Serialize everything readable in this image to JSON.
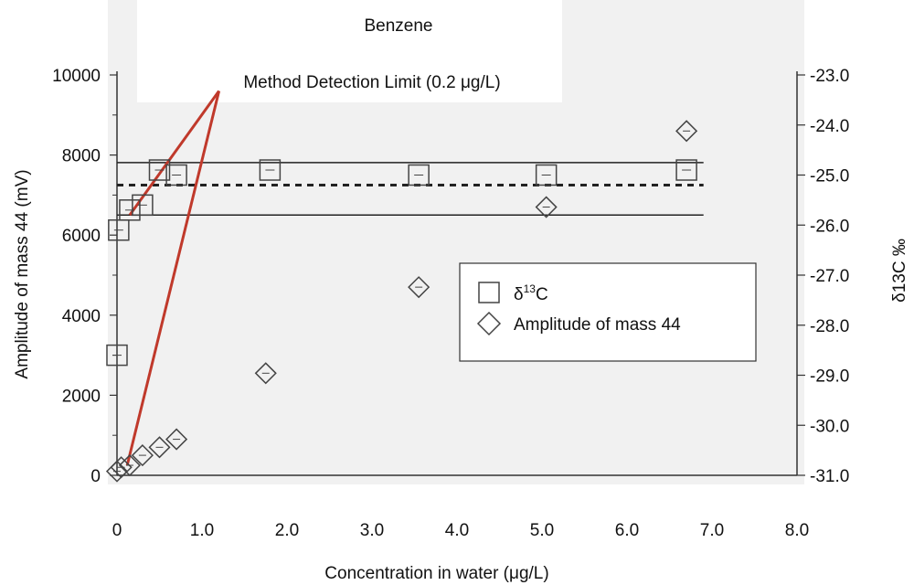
{
  "chart_data": {
    "type": "scatter",
    "title": "Benzene",
    "annotation": "Method Detection Limit (0.2 μg/L)",
    "xlabel": "Concentration in water (μg/L)",
    "ylabel_left": "Amplitude of mass 44 (mV)",
    "ylabel_right": "δ13C ‰",
    "xlim": [
      0,
      8
    ],
    "ylim_left": [
      0,
      10000
    ],
    "ylim_right": [
      -31.0,
      -23.0
    ],
    "x_ticks": [
      "0",
      "1.0",
      "2.0",
      "3.0",
      "4.0",
      "5.0",
      "6.0",
      "7.0",
      "8.0"
    ],
    "y_ticks_left": [
      "0",
      "2000",
      "4000",
      "6000",
      "8000",
      "10000"
    ],
    "y_ticks_right": [
      "-23.0",
      "-24.0",
      "-25.0",
      "-26.0",
      "-27.0",
      "-28.0",
      "-29.0",
      "-30.0",
      "-31.0"
    ],
    "legend": {
      "position": "center-right",
      "items": [
        {
          "symbol": "square",
          "label_main": "δ",
          "label_sup": "13",
          "label_tail": "C"
        },
        {
          "symbol": "diamond",
          "label": "Amplitude of mass 44"
        }
      ]
    },
    "series": [
      {
        "name": "δ13C",
        "marker": "square",
        "axis": "right",
        "points": [
          {
            "x": 0.0,
            "y": -28.6
          },
          {
            "x": 0.02,
            "y": -26.1
          },
          {
            "x": 0.15,
            "y": -25.7
          },
          {
            "x": 0.3,
            "y": -25.6
          },
          {
            "x": 0.5,
            "y": -24.9
          },
          {
            "x": 0.7,
            "y": -25.0
          },
          {
            "x": 1.8,
            "y": -24.9
          },
          {
            "x": 3.55,
            "y": -25.0
          },
          {
            "x": 5.05,
            "y": -25.0
          },
          {
            "x": 6.7,
            "y": -24.9
          }
        ]
      },
      {
        "name": "Amplitude of mass 44",
        "marker": "diamond",
        "axis": "left",
        "points": [
          {
            "x": 0.0,
            "y": 100
          },
          {
            "x": 0.05,
            "y": 200
          },
          {
            "x": 0.15,
            "y": 250
          },
          {
            "x": 0.3,
            "y": 500
          },
          {
            "x": 0.5,
            "y": 700
          },
          {
            "x": 0.7,
            "y": 900
          },
          {
            "x": 1.75,
            "y": 2550
          },
          {
            "x": 3.55,
            "y": 4700
          },
          {
            "x": 5.05,
            "y": 6700
          },
          {
            "x": 6.7,
            "y": 8600
          }
        ]
      }
    ],
    "reference_lines": [
      {
        "style": "dotted",
        "axis": "right",
        "y": -25.2
      },
      {
        "style": "solid",
        "axis": "right",
        "y": -24.75
      },
      {
        "style": "solid",
        "axis": "right",
        "y": -25.8
      }
    ],
    "mdl_lines": {
      "color": "#c0392b",
      "from": [
        0.15,
        6500
      ],
      "via": [
        1.2,
        9600
      ],
      "to": [
        0.12,
        250
      ]
    }
  }
}
